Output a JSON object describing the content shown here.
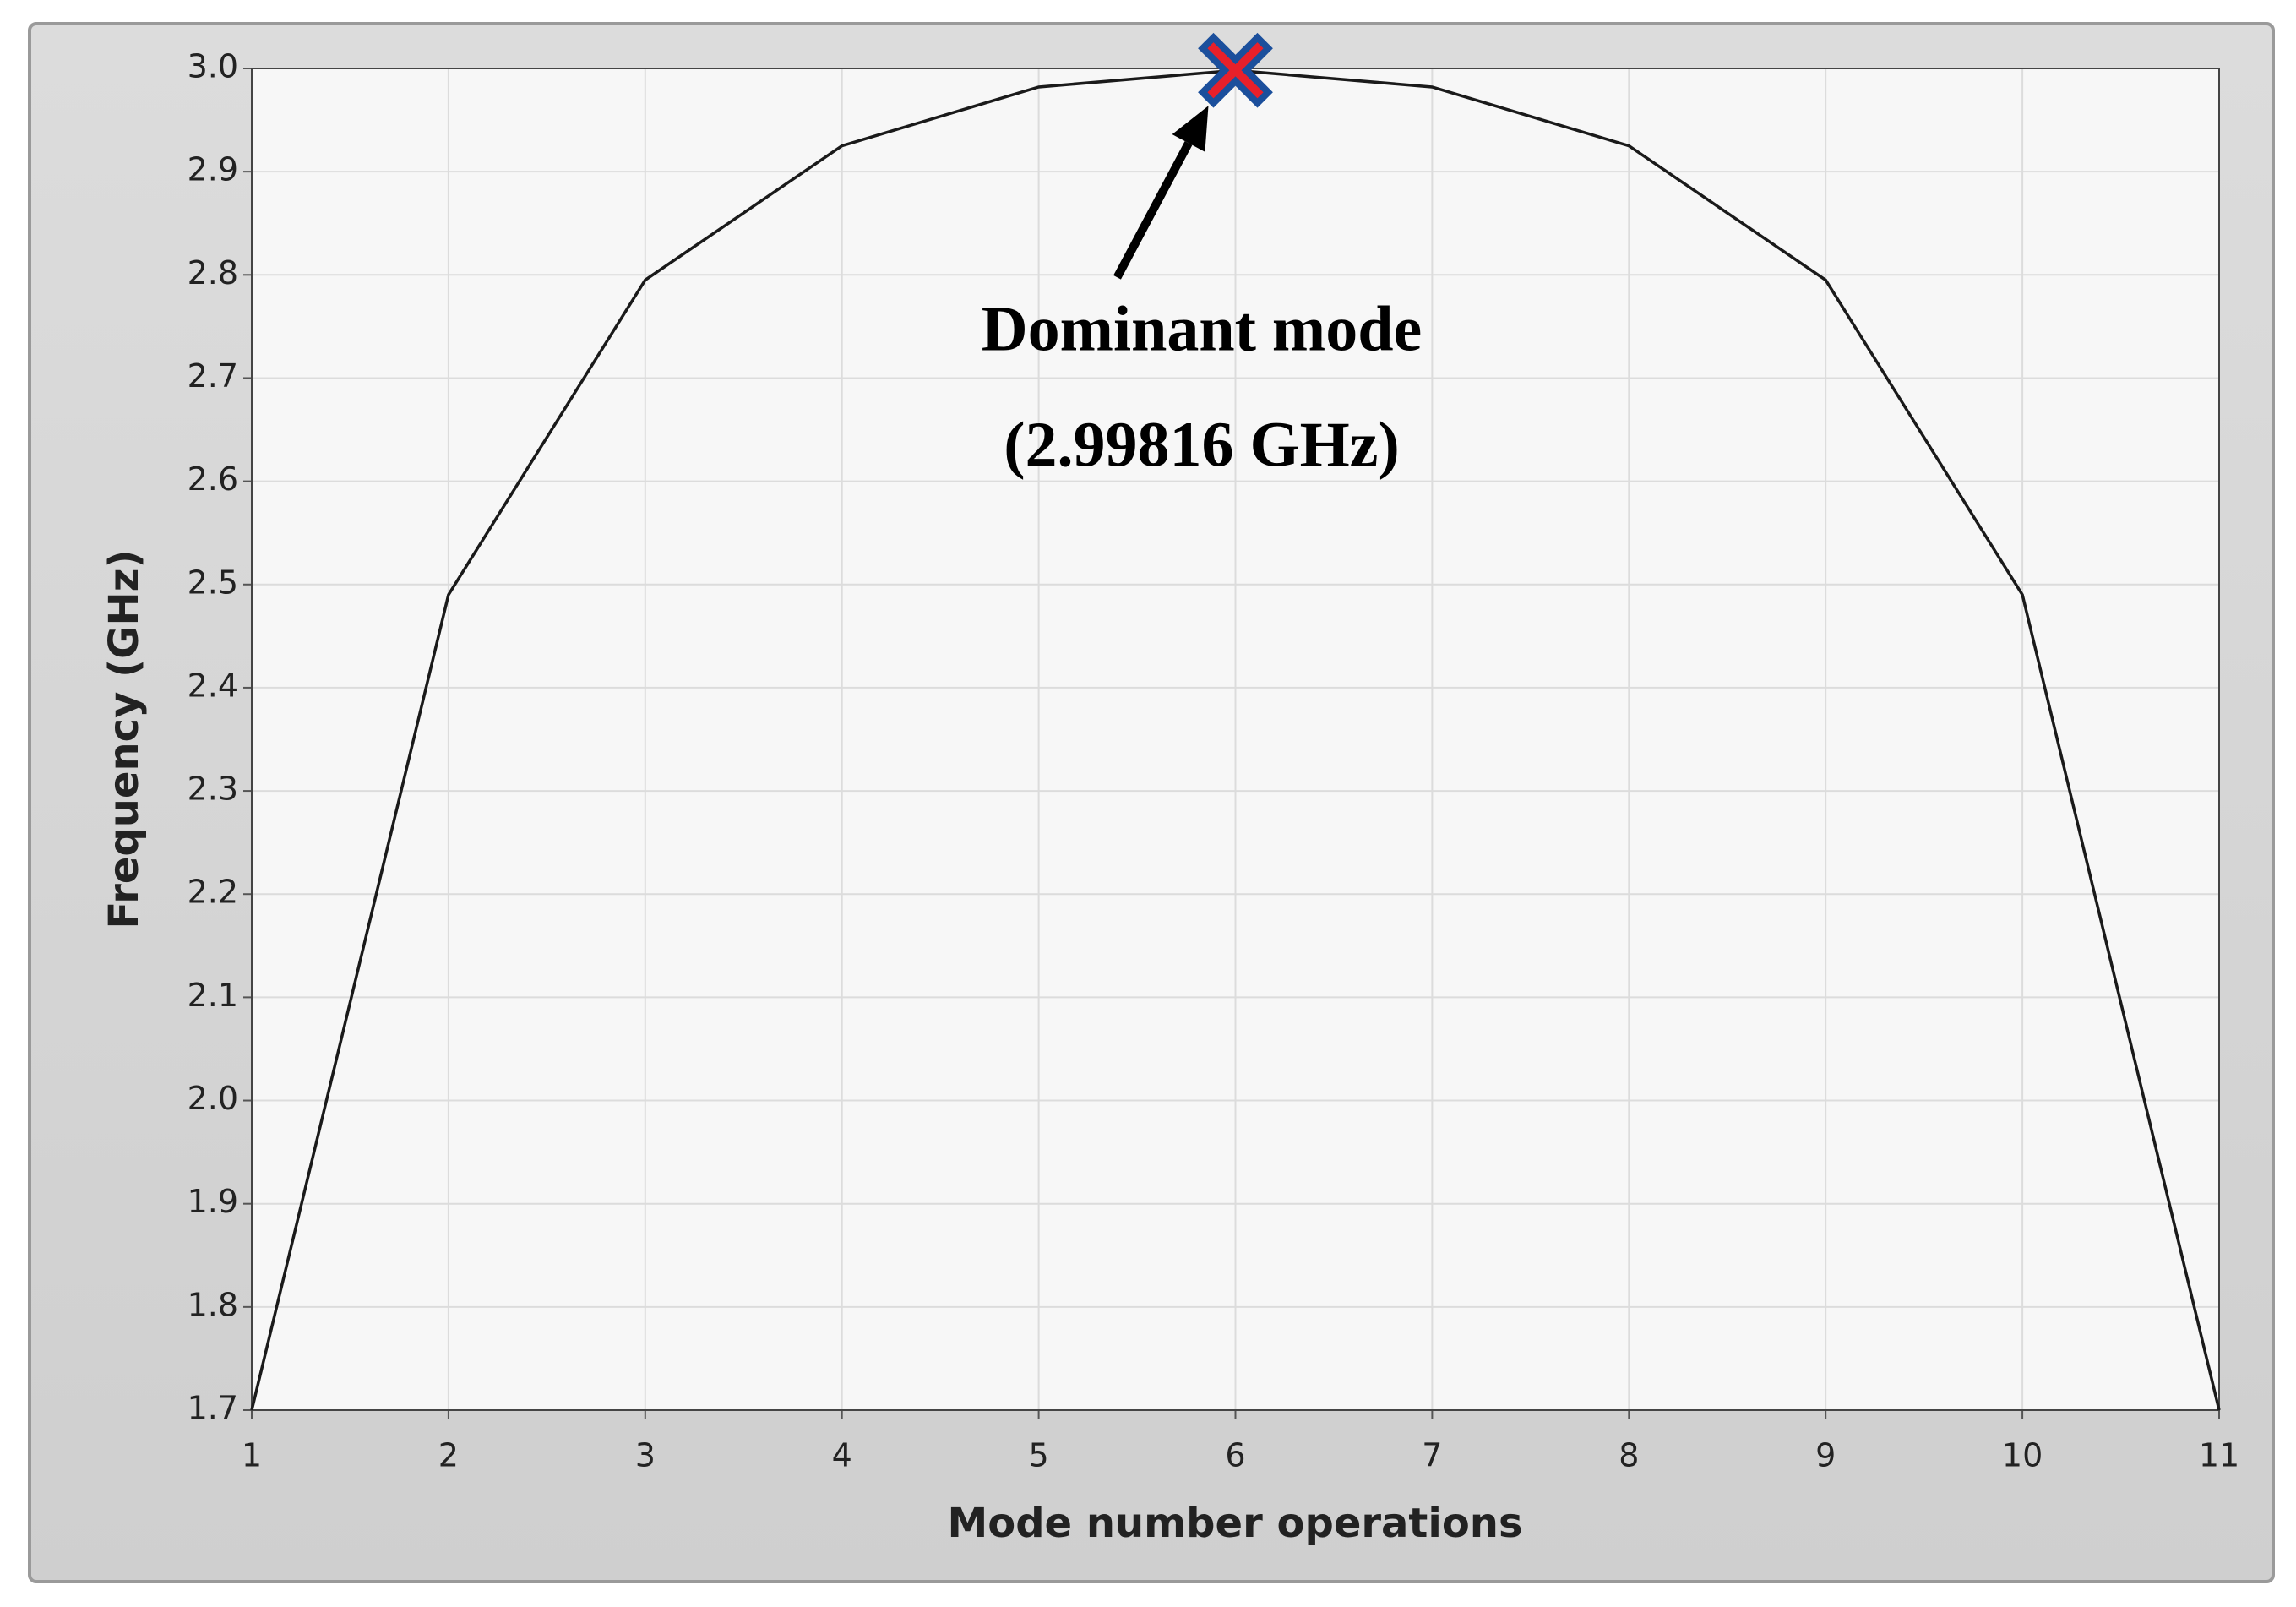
{
  "chart_data": {
    "type": "line",
    "x_label": "Mode number operations",
    "y_label": "Frequency (GHz)",
    "x": [
      1,
      2,
      3,
      4,
      5,
      6,
      7,
      8,
      9,
      10,
      11
    ],
    "values": [
      1.7,
      2.49,
      2.795,
      2.925,
      2.982,
      2.99816,
      2.982,
      2.925,
      2.795,
      2.49,
      1.7
    ],
    "color": "#1a1a1a",
    "xlim": [
      1,
      11
    ],
    "xticks": [
      1,
      2,
      3,
      4,
      5,
      6,
      7,
      8,
      9,
      10,
      11
    ],
    "ylim": [
      1.7,
      3.0
    ],
    "yticks": [
      1.7,
      1.8,
      1.9,
      {
        "value": 2,
        "label": "2.0"
      },
      2.1,
      2.2,
      2.3,
      2.4,
      2.5,
      2.6,
      2.7,
      2.8,
      2.9,
      {
        "value": 3,
        "label": "3.0"
      }
    ],
    "grid": true,
    "annotation": {
      "lines": [
        "Dominant mode",
        "(2.99816 GHz)"
      ],
      "x": 6,
      "y": 2.99816
    }
  }
}
